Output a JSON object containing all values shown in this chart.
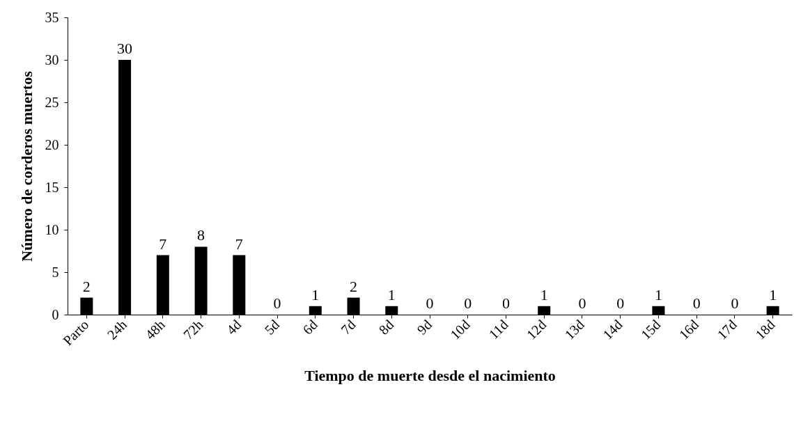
{
  "chart_data": {
    "type": "bar",
    "xlabel": "Tiempo de muerte desde el nacimiento",
    "ylabel": "Número de corderos  muertos",
    "categories": [
      "Parto",
      "24h",
      "48h",
      "72h",
      "4d",
      "5d",
      "6d",
      "7d",
      "8d",
      "9d",
      "10d",
      "11d",
      "12d",
      "13d",
      "14d",
      "15d",
      "16d",
      "17d",
      "18d"
    ],
    "values": [
      2,
      30,
      7,
      8,
      7,
      0,
      1,
      2,
      1,
      0,
      0,
      0,
      1,
      0,
      0,
      1,
      0,
      0,
      1
    ],
    "color": "#000000",
    "ylim": [
      0,
      35
    ],
    "yticks": [
      0,
      5,
      10,
      15,
      20,
      25,
      30,
      35
    ],
    "grid": false,
    "data_labels": true
  }
}
